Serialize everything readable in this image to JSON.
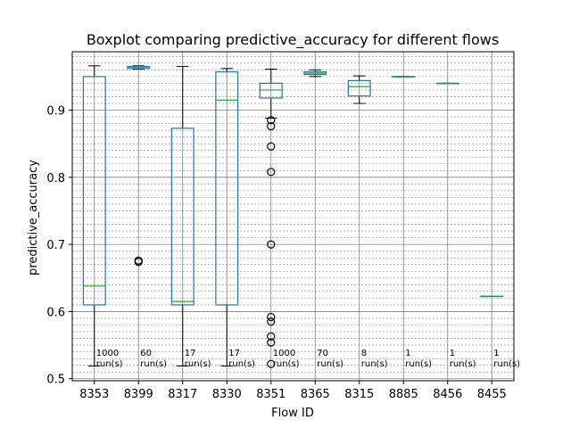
{
  "chart_data": {
    "type": "boxplot",
    "title": "Boxplot comparing predictive_accuracy for different flows",
    "xlabel": "Flow ID",
    "ylabel": "predictive_accuracy",
    "ylim": [
      0.497,
      0.987
    ],
    "yticks": [
      0.5,
      0.6,
      0.7,
      0.8,
      0.9
    ],
    "ytick_labels": [
      "0.5",
      "0.6",
      "0.7",
      "0.8",
      "0.9"
    ],
    "grid": true,
    "categories": [
      "8353",
      "8399",
      "8317",
      "8330",
      "8351",
      "8365",
      "8315",
      "8885",
      "8456",
      "8455"
    ],
    "boxes": [
      {
        "flow": "8353",
        "whisker_low": 0.519,
        "q1": 0.61,
        "median": 0.638,
        "q3": 0.95,
        "whisker_high": 0.966,
        "outliers": []
      },
      {
        "flow": "8399",
        "whisker_low": 0.961,
        "q1": 0.962,
        "median": 0.964,
        "q3": 0.965,
        "whisker_high": 0.966,
        "outliers": [
          0.674,
          0.676
        ]
      },
      {
        "flow": "8317",
        "whisker_low": 0.519,
        "q1": 0.61,
        "median": 0.615,
        "q3": 0.873,
        "whisker_high": 0.965,
        "outliers": []
      },
      {
        "flow": "8330",
        "whisker_low": 0.519,
        "q1": 0.61,
        "median": 0.915,
        "q3": 0.957,
        "whisker_high": 0.962,
        "outliers": []
      },
      {
        "flow": "8351",
        "whisker_low": 0.888,
        "q1": 0.918,
        "median": 0.93,
        "q3": 0.94,
        "whisker_high": 0.961,
        "outliers": [
          0.885,
          0.876,
          0.846,
          0.808,
          0.7,
          0.592,
          0.585,
          0.563,
          0.554,
          0.522
        ]
      },
      {
        "flow": "8365",
        "whisker_low": 0.95,
        "q1": 0.953,
        "median": 0.955,
        "q3": 0.957,
        "whisker_high": 0.96,
        "outliers": []
      },
      {
        "flow": "8315",
        "whisker_low": 0.91,
        "q1": 0.921,
        "median": 0.935,
        "q3": 0.944,
        "whisker_high": 0.951,
        "outliers": []
      },
      {
        "flow": "8885",
        "whisker_low": 0.95,
        "q1": 0.95,
        "median": 0.95,
        "q3": 0.95,
        "whisker_high": 0.95,
        "outliers": []
      },
      {
        "flow": "8456",
        "whisker_low": 0.94,
        "q1": 0.94,
        "median": 0.94,
        "q3": 0.94,
        "whisker_high": 0.94,
        "outliers": []
      },
      {
        "flow": "8455",
        "whisker_low": 0.623,
        "q1": 0.623,
        "median": 0.623,
        "q3": 0.623,
        "whisker_high": 0.623,
        "outliers": []
      }
    ],
    "run_counts": [
      "1000",
      "60",
      "17",
      "17",
      "1000",
      "70",
      "8",
      "1",
      "1",
      "1"
    ],
    "run_suffix": "run(s)",
    "colors": {
      "box": "#1f77b4",
      "median": "#2ca02c",
      "whisker": "#000000",
      "grid": "#808080"
    }
  }
}
